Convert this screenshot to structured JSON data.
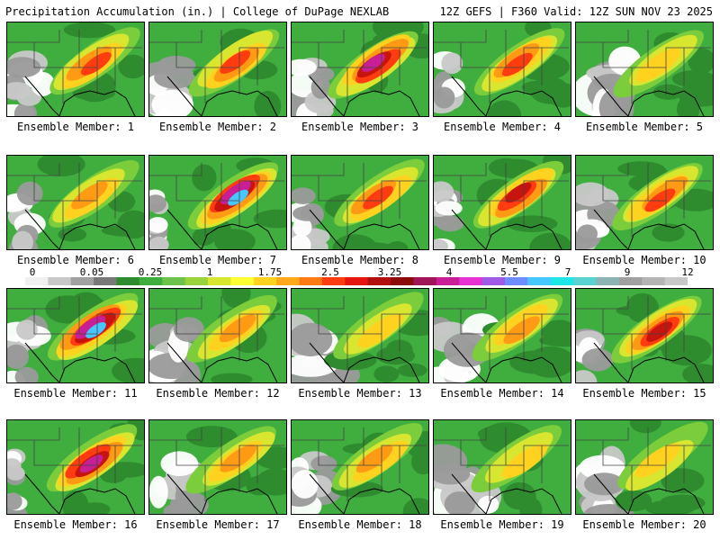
{
  "header": {
    "left": "Precipitation Accumulation (in.) | College of DuPage NEXLAB",
    "right": "12Z GEFS | F360 Valid: 12Z SUN NOV 23 2025"
  },
  "panels": [
    {
      "label": "Ensemble Member: 1"
    },
    {
      "label": "Ensemble Member: 2"
    },
    {
      "label": "Ensemble Member: 3"
    },
    {
      "label": "Ensemble Member: 4"
    },
    {
      "label": "Ensemble Member: 5"
    },
    {
      "label": "Ensemble Member: 6"
    },
    {
      "label": "Ensemble Member: 7"
    },
    {
      "label": "Ensemble Member: 8"
    },
    {
      "label": "Ensemble Member: 9"
    },
    {
      "label": "Ensemble Member: 10"
    },
    {
      "label": "Ensemble Member: 11"
    },
    {
      "label": "Ensemble Member: 12"
    },
    {
      "label": "Ensemble Member: 13"
    },
    {
      "label": "Ensemble Member: 14"
    },
    {
      "label": "Ensemble Member: 15"
    },
    {
      "label": "Ensemble Member: 16"
    },
    {
      "label": "Ensemble Member: 17"
    },
    {
      "label": "Ensemble Member: 18"
    },
    {
      "label": "Ensemble Member: 19"
    },
    {
      "label": "Ensemble Member: 20"
    }
  ],
  "scale": {
    "labels": [
      "0",
      "0.05",
      "0.25",
      "1",
      "1.75",
      "2.5",
      "3.25",
      "4",
      "5.5",
      "7",
      "9",
      "12"
    ],
    "colors": [
      "#f0f0f0",
      "#c8c8c8",
      "#a0a0a0",
      "#787878",
      "#2e8b2e",
      "#3fae3f",
      "#6cc24a",
      "#9ad23c",
      "#d8e630",
      "#ffff33",
      "#ffd21f",
      "#ffa81a",
      "#ff7a14",
      "#ff3c0f",
      "#e6150f",
      "#b40f0f",
      "#8c0a0a",
      "#a0145a",
      "#c81e96",
      "#e632d2",
      "#a05ae6",
      "#6e8cff",
      "#46c8ff",
      "#1ee6e6",
      "#5ad2d2",
      "#8cb4b4",
      "#a0a0a0",
      "#b4b4b4",
      "#c8c8c8"
    ]
  }
}
